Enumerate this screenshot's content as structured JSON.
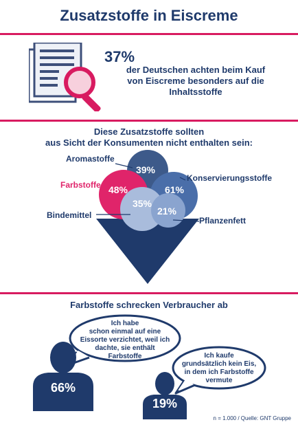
{
  "title": "Zusatzstoffe in Eiscreme",
  "intro": {
    "percent": "37%",
    "lines": [
      "der Deutschen achten beim Kauf",
      "von Eiscreme besonders auf die",
      "Inhaltsstoffe"
    ],
    "icon": "document-magnifier-icon"
  },
  "section2": {
    "heading_lines": [
      "Diese Zusatzstoffe sollten",
      "aus Sicht der Konsumenten nicht enthalten sein:"
    ],
    "items": [
      {
        "label": "Aromastoffe",
        "percent": "39%",
        "color": "#3d5a8a"
      },
      {
        "label": "Farbstoffe",
        "percent": "48%",
        "color": "#e0246a"
      },
      {
        "label": "Konservierungsstoffe",
        "percent": "61%",
        "color": "#4a6ea9"
      },
      {
        "label": "Bindemittel",
        "percent": "35%",
        "color": "#a9bcdc"
      },
      {
        "label": "Pflanzenfett",
        "percent": "21%",
        "color": "#8aa4cf"
      }
    ],
    "cone_color": "#1f3a6b"
  },
  "section3": {
    "heading": "Farbstoffe schrecken Verbraucher ab",
    "quote1_lines": [
      "Ich habe",
      "schon einmal auf eine",
      "Eissorte verzichtet, weil ich",
      "dachte, sie enthält",
      "Farbstoffe"
    ],
    "quote2_lines": [
      "Ich kaufe",
      "grundsätzlich kein Eis,",
      "in dem ich Farbstoffe",
      "vermute"
    ],
    "person1_percent": "66%",
    "person2_percent": "19%",
    "person_icon": "person-silhouette-icon"
  },
  "footer": "n = 1.000 / Quelle: GNT Gruppe",
  "colors": {
    "navy": "#1f3a6b",
    "pink": "#d81b60"
  }
}
